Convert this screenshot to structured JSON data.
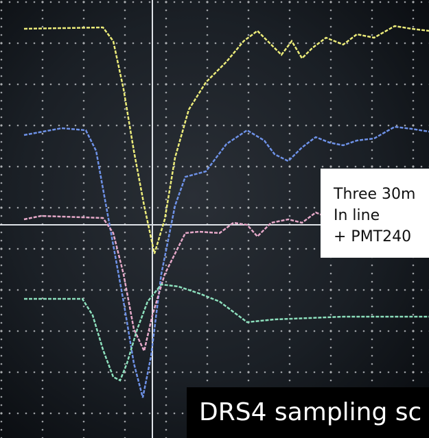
{
  "annotation": {
    "lines": [
      "Three 30m",
      "In line",
      "+ PMT240"
    ]
  },
  "caption": "DRS4 sampling sc"
}
